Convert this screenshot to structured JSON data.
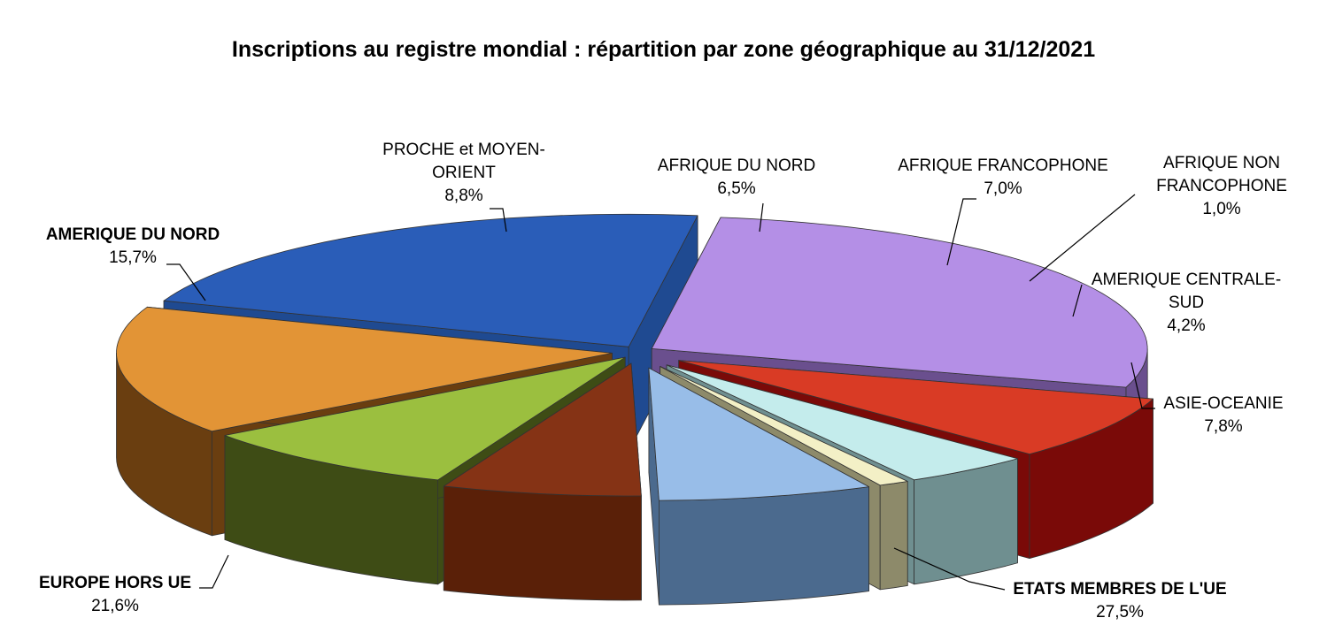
{
  "chart_data": {
    "type": "pie",
    "title": "Inscriptions au registre mondial : répartition par zone géographique au 31/12/2021",
    "slices": [
      {
        "label": "ETATS MEMBRES DE L'UE",
        "label_lines": [
          "ETATS MEMBRES DE L'UE"
        ],
        "value_label": "27,5%",
        "value": 27.5,
        "color": "#b48fe6",
        "side_color": "#6a4f8e",
        "bold": true
      },
      {
        "label": "ASIE-OCEANIE",
        "label_lines": [
          "ASIE-OCEANIE"
        ],
        "value_label": "7,8%",
        "value": 7.8,
        "color": "#d93b25",
        "side_color": "#7a0a08",
        "bold": false
      },
      {
        "label": "AMERIQUE CENTRALE-SUD",
        "label_lines": [
          "AMERIQUE CENTRALE-",
          "SUD"
        ],
        "value_label": "4,2%",
        "value": 4.2,
        "color": "#c4ecec",
        "side_color": "#6f8f90",
        "bold": false
      },
      {
        "label": "AFRIQUE NON FRANCOPHONE",
        "label_lines": [
          "AFRIQUE NON",
          "FRANCOPHONE"
        ],
        "value_label": "1,0%",
        "value": 1.0,
        "color": "#f3f0c6",
        "side_color": "#8d8a6a",
        "bold": false
      },
      {
        "label": "AFRIQUE FRANCOPHONE",
        "label_lines": [
          "AFRIQUE FRANCOPHONE"
        ],
        "value_label": "7,0%",
        "value": 7.0,
        "color": "#98bde8",
        "side_color": "#4b6a8e",
        "bold": false
      },
      {
        "label": "AFRIQUE DU NORD",
        "label_lines": [
          "AFRIQUE DU NORD"
        ],
        "value_label": "6,5%",
        "value": 6.5,
        "color": "#853315",
        "side_color": "#5a2008",
        "bold": false
      },
      {
        "label": "PROCHE et MOYEN-ORIENT",
        "label_lines": [
          "PROCHE et MOYEN-",
          "ORIENT"
        ],
        "value_label": "8,8%",
        "value": 8.8,
        "color": "#9bbf3f",
        "side_color": "#3e4c15",
        "bold": false
      },
      {
        "label": "AMERIQUE DU NORD",
        "label_lines": [
          "AMERIQUE DU NORD"
        ],
        "value_label": "15,7%",
        "value": 15.7,
        "color": "#e29436",
        "side_color": "#6a3e10",
        "bold": true
      },
      {
        "label": "EUROPE HORS UE",
        "label_lines": [
          "EUROPE HORS UE"
        ],
        "value_label": "21,6%",
        "value": 21.6,
        "color": "#2a5db8",
        "side_color": "#1f4a91",
        "bold": true
      }
    ],
    "legend": "none",
    "exploded": true,
    "three_d": true
  }
}
